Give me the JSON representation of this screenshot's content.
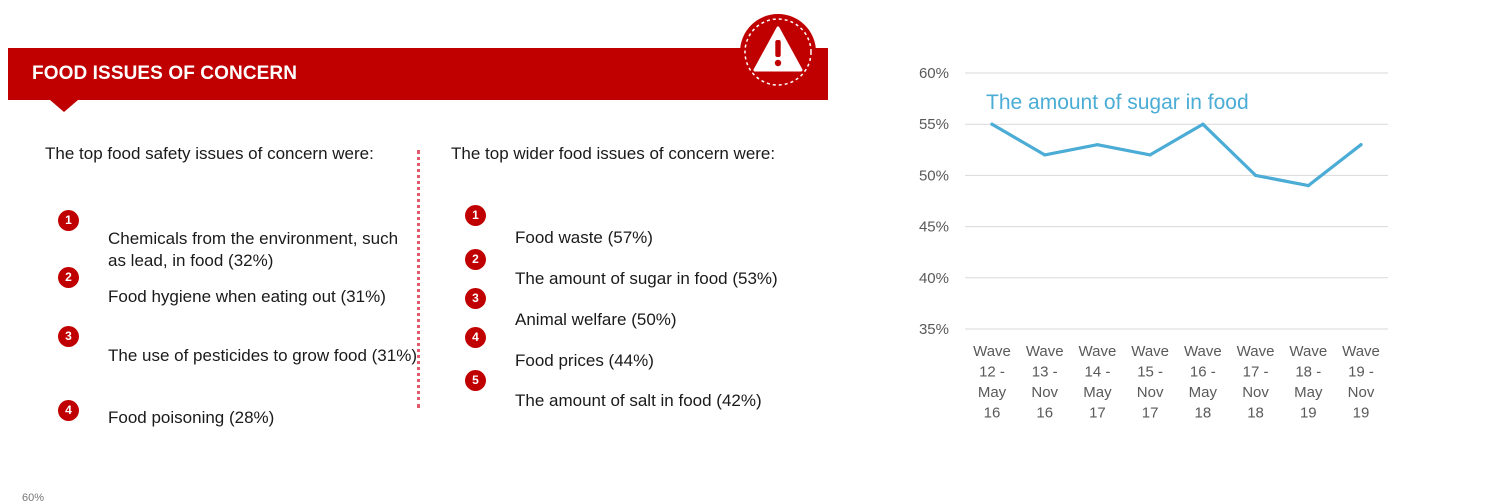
{
  "banner": {
    "title": "FOOD ISSUES OF CONCERN",
    "icon": "warning-icon",
    "color": "#c00000"
  },
  "safety": {
    "intro": "The top food safety issues of concern were:",
    "items": [
      {
        "num": "1",
        "text": "Chemicals from the environment, such as lead, in food (32%)"
      },
      {
        "num": "2",
        "text": "Food hygiene when eating out (31%)"
      },
      {
        "num": "3",
        "text": "The use of pesticides to grow food (31%)"
      },
      {
        "num": "4",
        "text": "Food poisoning (28%)"
      }
    ]
  },
  "wider": {
    "intro": "The top wider food issues of concern were:",
    "items": [
      {
        "num": "1",
        "text": "Food waste (57%)"
      },
      {
        "num": "2",
        "text": "The amount of sugar in food (53%)"
      },
      {
        "num": "3",
        "text": "Animal welfare (50%)"
      },
      {
        "num": "4",
        "text": "Food prices (44%)"
      },
      {
        "num": "5",
        "text": "The amount of salt in food (42%)"
      }
    ]
  },
  "chart_data": {
    "type": "line",
    "title": "",
    "xlabel": "",
    "ylabel": "",
    "categories": [
      [
        "Wave",
        "12 -",
        "May",
        "16"
      ],
      [
        "Wave",
        "13 -",
        "Nov",
        "16"
      ],
      [
        "Wave",
        "14 -",
        "May",
        "17"
      ],
      [
        "Wave",
        "15 -",
        "Nov",
        "17"
      ],
      [
        "Wave",
        "16 -",
        "May",
        "18"
      ],
      [
        "Wave",
        "17 -",
        "Nov",
        "18"
      ],
      [
        "Wave",
        "18 -",
        "May",
        "19"
      ],
      [
        "Wave",
        "19 -",
        "Nov",
        "19"
      ]
    ],
    "series": [
      {
        "name": "The amount of sugar in food",
        "values": [
          55,
          52,
          53,
          52,
          55,
          50,
          49,
          53
        ],
        "color": "#4bacd6"
      }
    ],
    "ylim": [
      35,
      60
    ],
    "yticks": [
      35,
      40,
      45,
      50,
      55,
      60
    ],
    "ytick_labels": [
      "35%",
      "40%",
      "45%",
      "50%",
      "55%",
      "60%"
    ],
    "grid": true,
    "legend": "top-left, inline label"
  },
  "footer": {
    "fragment": "60%"
  }
}
